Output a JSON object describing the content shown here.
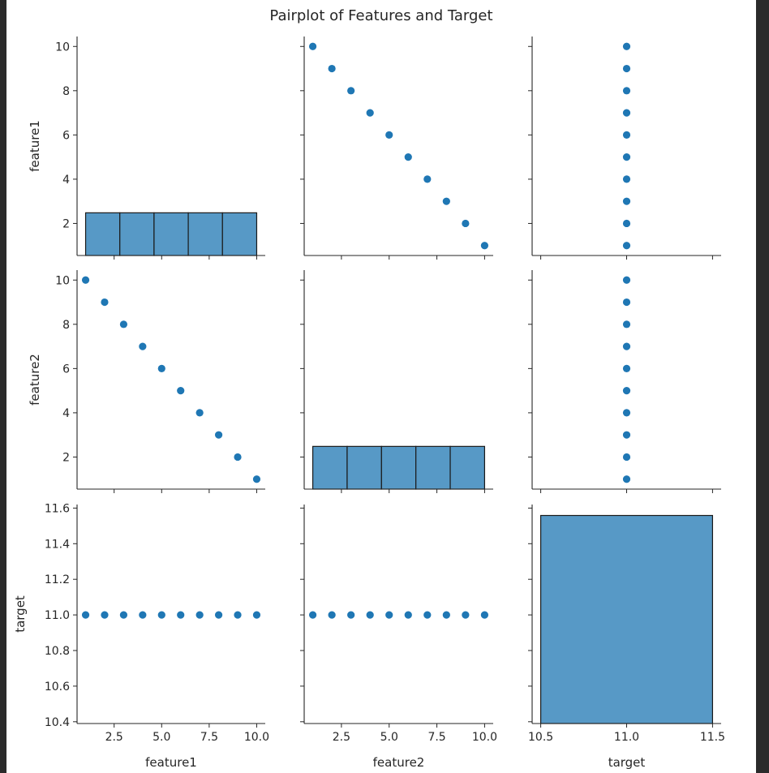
{
  "window": {
    "background": "#2b2b2b",
    "figure_background": "#ffffff"
  },
  "chart_data": {
    "type": "scatter",
    "title": "Pairplot of Features and Target",
    "variables": [
      "feature1",
      "feature2",
      "target"
    ],
    "point_color": "#1f77b4",
    "hist_color": "#5799c6",
    "data": {
      "feature1": [
        1,
        2,
        3,
        4,
        5,
        6,
        7,
        8,
        9,
        10
      ],
      "feature2": [
        10,
        9,
        8,
        7,
        6,
        5,
        4,
        3,
        2,
        1
      ],
      "target": [
        11,
        11,
        11,
        11,
        11,
        11,
        11,
        11,
        11,
        11
      ]
    },
    "diagonal": "hist",
    "offdiagonal": "scatter",
    "histograms": [
      {
        "variable": "feature1",
        "bins": 5,
        "range": [
          1,
          10
        ],
        "counts": [
          2,
          2,
          2,
          2,
          2
        ]
      },
      {
        "variable": "feature2",
        "bins": 5,
        "range": [
          1,
          10
        ],
        "counts": [
          2,
          2,
          2,
          2,
          2
        ]
      },
      {
        "variable": "target",
        "bins": 1,
        "range": [
          10.5,
          11.5
        ],
        "counts": [
          10
        ]
      }
    ],
    "axes": {
      "feature1": {
        "range": [
          0.55,
          10.45
        ],
        "y_ticks": [
          2,
          4,
          6,
          8,
          10
        ],
        "y_tick_labels": [
          "2",
          "4",
          "6",
          "8",
          "10"
        ],
        "x_ticks": [
          2.5,
          5.0,
          7.5,
          10.0
        ],
        "x_tick_labels": [
          "2.5",
          "5.0",
          "7.5",
          "10.0"
        ]
      },
      "feature2": {
        "range": [
          0.55,
          10.45
        ],
        "y_ticks": [
          2,
          4,
          6,
          8,
          10
        ],
        "y_tick_labels": [
          "2",
          "4",
          "6",
          "8",
          "10"
        ],
        "x_ticks": [
          2.5,
          5.0,
          7.5,
          10.0
        ],
        "x_tick_labels": [
          "2.5",
          "5.0",
          "7.5",
          "10.0"
        ]
      },
      "target": {
        "y_range": [
          10.39,
          11.62
        ],
        "y_ticks": [
          10.4,
          10.6,
          10.8,
          11.0,
          11.2,
          11.4,
          11.6
        ],
        "y_tick_labels": [
          "10.4",
          "10.6",
          "10.8",
          "11.0",
          "11.2",
          "11.4",
          "11.6"
        ],
        "x_range": [
          10.45,
          11.55
        ],
        "x_ticks": [
          10.5,
          11.0,
          11.5
        ],
        "x_tick_labels": [
          "10.5",
          "11.0",
          "11.5"
        ]
      }
    }
  }
}
